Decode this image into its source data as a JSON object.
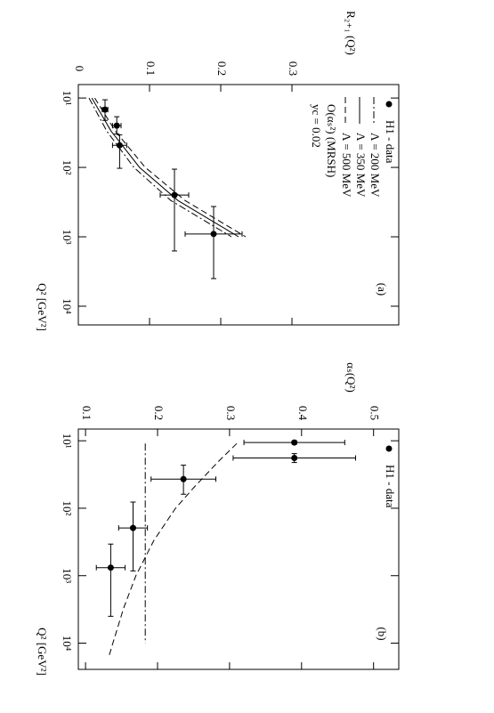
{
  "chart_data": [
    {
      "type": "line",
      "title": "(a)",
      "x_label": "Q² [GeV²]",
      "y_label": "R₂₊₁ (Q²)",
      "x_scale": "log",
      "xlim": [
        6.4,
        18600
      ],
      "xticks": [
        {
          "value": 10,
          "label": "10¹"
        },
        {
          "value": 100,
          "label": "10²"
        },
        {
          "value": 1000,
          "label": "10³"
        },
        {
          "value": 10000,
          "label": "10⁴"
        }
      ],
      "ylim": [
        0,
        0.45
      ],
      "yticks": [
        {
          "value": 0,
          "label": "0"
        },
        0.1,
        0.2,
        0.3
      ],
      "annotations": [
        "O(αₛ²) (MRSH)",
        "yc = 0.02"
      ],
      "series": [
        {
          "name": "H1 - data",
          "style": "points",
          "color": "#000000",
          "x": [
            14.7,
            25,
            48,
            250,
            910
          ],
          "values": [
            0.0375,
            0.054,
            0.058,
            0.135,
            0.19
          ],
          "errors": [
            0.004,
            0.006,
            0.01,
            0.02,
            0.04
          ],
          "x_ranges": [
            [
              10.6,
              21
            ],
            [
              18.6,
              33
            ],
            [
              34,
              103
            ],
            [
              106,
              1600
            ],
            [
              366,
              4000
            ]
          ]
        },
        {
          "name": "Λ = 200 MeV",
          "style": "dashdot",
          "color": "#000000",
          "x": [
            10,
            30,
            100,
            300,
            1000
          ],
          "values": [
            0.015,
            0.04,
            0.078,
            0.13,
            0.215
          ]
        },
        {
          "name": "Λ = 350 MeV",
          "style": "solid",
          "color": "#000000",
          "x": [
            10,
            30,
            100,
            300,
            1000
          ],
          "values": [
            0.019,
            0.046,
            0.086,
            0.14,
            0.225
          ]
        },
        {
          "name": "Λ = 500 MeV",
          "style": "dashed",
          "color": "#000000",
          "x": [
            10,
            30,
            100,
            300,
            1000
          ],
          "values": [
            0.023,
            0.052,
            0.094,
            0.15,
            0.235
          ]
        }
      ]
    },
    {
      "type": "line",
      "title": "(b)",
      "x_label": "Q² [GeV²]",
      "y_label": "αₛ(Q²)",
      "x_scale": "log",
      "xlim": [
        6.7,
        24500
      ],
      "xticks": [
        {
          "value": 10,
          "label": "10¹"
        },
        {
          "value": 100,
          "label": "10²"
        },
        {
          "value": 1000,
          "label": "10³"
        },
        {
          "value": 10000,
          "label": "10⁴"
        }
      ],
      "ylim": [
        0.09,
        0.535
      ],
      "yticks": [
        0.1,
        0.2,
        0.3,
        0.4,
        0.5
      ],
      "annotations": [],
      "series": [
        {
          "name": "H1 - data",
          "style": "points",
          "color": "#000000",
          "x": [
            10.6,
            18,
            37,
            196,
            760
          ],
          "values": [
            0.39,
            0.39,
            0.236,
            0.166,
            0.135
          ],
          "errors": [
            0.07,
            0.085,
            0.045,
            0.02,
            0.02
          ],
          "x_ranges": [
            [
              10,
              11.2
            ],
            [
              15.5,
              21
            ],
            [
              23,
              62
            ],
            [
              81,
              850
            ],
            [
              340,
              4000
            ]
          ]
        },
        {
          "style": "dashed",
          "color": "#000000",
          "x": [
            11,
            20,
            50,
            100,
            300,
            1000,
            3000,
            10000,
            15000
          ],
          "values": [
            0.31,
            0.285,
            0.25,
            0.225,
            0.195,
            0.17,
            0.153,
            0.138,
            0.133
          ]
        },
        {
          "style": "dashdot",
          "color": "#000000",
          "x": [
            11,
            10000
          ],
          "values": [
            0.183,
            0.183
          ]
        }
      ]
    }
  ]
}
